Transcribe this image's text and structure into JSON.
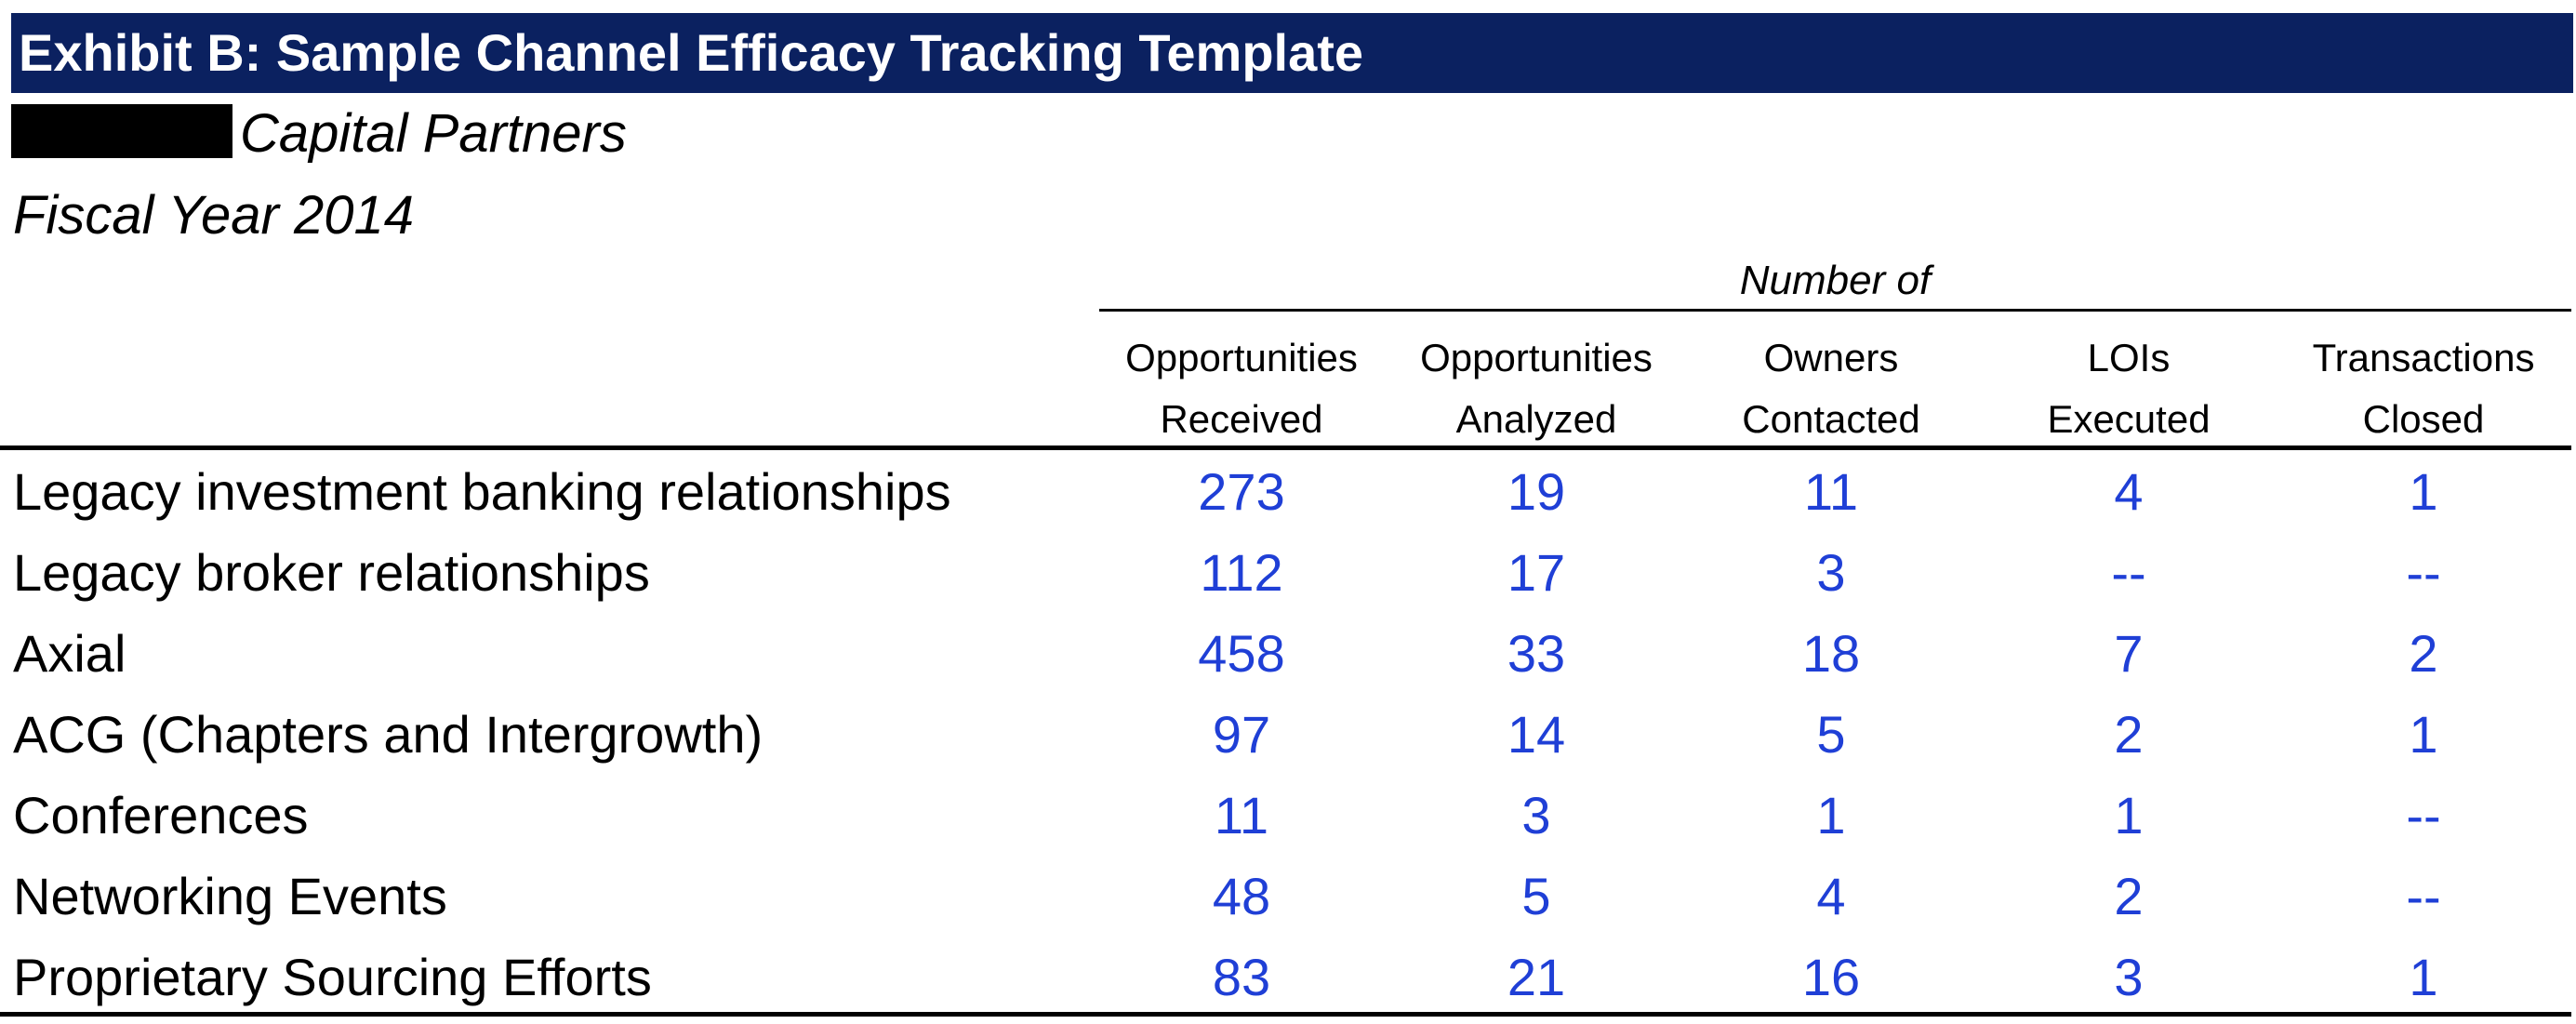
{
  "header": {
    "title": "Exhibit B: Sample Channel Efficacy Tracking Template",
    "firm_name": "Capital Partners",
    "period": "Fiscal Year 2014"
  },
  "table": {
    "group_header": "Number of",
    "columns": [
      {
        "line1": "Opportunities",
        "line2": "Received"
      },
      {
        "line1": "Opportunities",
        "line2": "Analyzed"
      },
      {
        "line1": "Owners",
        "line2": "Contacted"
      },
      {
        "line1": "LOIs",
        "line2": "Executed"
      },
      {
        "line1": "Transactions",
        "line2": "Closed"
      }
    ],
    "rows": [
      {
        "label": "Legacy investment banking relationships",
        "values": [
          "273",
          "19",
          "11",
          "4",
          "1"
        ]
      },
      {
        "label": "Legacy broker relationships",
        "values": [
          "112",
          "17",
          "3",
          "--",
          "--"
        ]
      },
      {
        "label": "Axial",
        "values": [
          "458",
          "33",
          "18",
          "7",
          "2"
        ]
      },
      {
        "label": "ACG (Chapters and Intergrowth)",
        "values": [
          "97",
          "14",
          "5",
          "2",
          "1"
        ]
      },
      {
        "label": "Conferences",
        "values": [
          "11",
          "3",
          "1",
          "1",
          "--"
        ]
      },
      {
        "label": "Networking Events",
        "values": [
          "48",
          "5",
          "4",
          "2",
          "--"
        ]
      },
      {
        "label": "Proprietary Sourcing Efforts",
        "values": [
          "83",
          "21",
          "16",
          "3",
          "1"
        ]
      }
    ]
  },
  "colors": {
    "title_bar": "#0b2160",
    "title_text": "#ffffff",
    "value_text": "#1f3fd6",
    "redaction": "#000000"
  }
}
